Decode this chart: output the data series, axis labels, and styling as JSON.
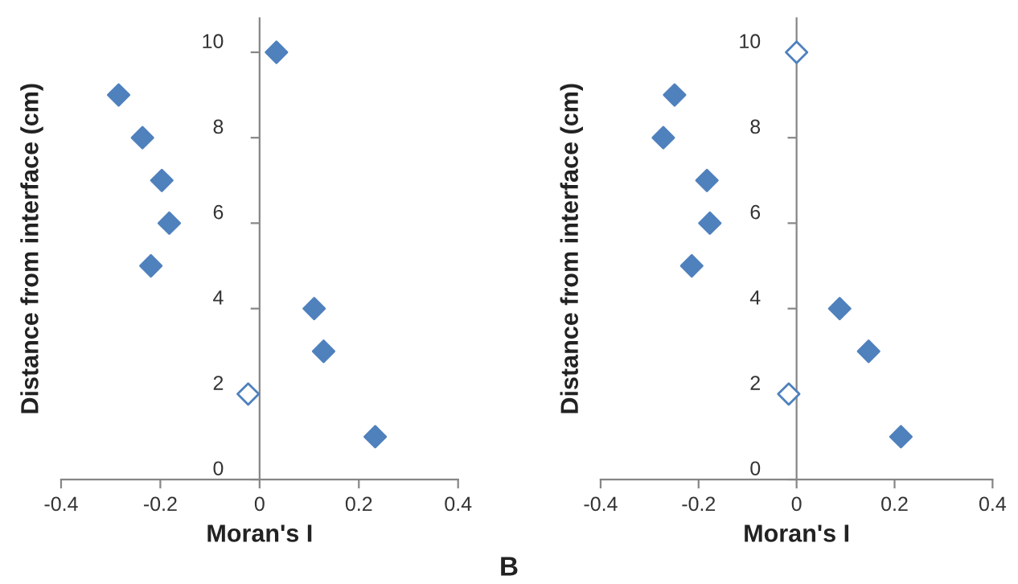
{
  "chart_data": [
    {
      "type": "scatter",
      "xlabel": "Moran's I",
      "ylabel": "Distance from interface (cm)",
      "xlim": [
        -0.4,
        0.4
      ],
      "xticks": [
        -0.4,
        -0.2,
        0,
        0.2,
        0.4
      ],
      "ylim": [
        0,
        10.8
      ],
      "yticks": [
        0,
        2,
        4,
        6,
        8,
        10
      ],
      "grid": false,
      "legend": false,
      "marker": "diamond",
      "series": [
        {
          "color": "#4f81bd",
          "x": [
            0.034,
            -0.284,
            -0.236,
            -0.197,
            -0.182,
            -0.219,
            0.11,
            0.129,
            0.233
          ],
          "values": [
            10,
            9,
            8,
            7,
            6,
            5,
            4,
            3,
            1
          ]
        },
        {
          "color": "#4f81bd",
          "x": [
            -0.023
          ],
          "values": [
            2
          ]
        }
      ]
    },
    {
      "type": "scatter",
      "xlabel": "Moran's I",
      "ylabel": "Distance from interface (cm)",
      "xlim": [
        -0.4,
        0.4
      ],
      "xticks": [
        -0.4,
        -0.2,
        0,
        0.2,
        0.4
      ],
      "ylim": [
        0,
        10.8
      ],
      "yticks": [
        0,
        2,
        4,
        6,
        8,
        10
      ],
      "grid": false,
      "legend": false,
      "marker": "diamond",
      "annotations": [
        "B"
      ],
      "series": [
        {
          "color": "#4f81bd",
          "x": [
            -0.249,
            -0.272,
            -0.183,
            -0.177,
            -0.214,
            0.088,
            0.147,
            0.213
          ],
          "values": [
            9,
            8,
            7,
            6,
            5,
            4,
            3,
            1
          ]
        },
        {
          "color": "#4f81bd",
          "x": [
            0.0,
            -0.016
          ],
          "values": [
            10,
            2
          ]
        }
      ]
    }
  ]
}
